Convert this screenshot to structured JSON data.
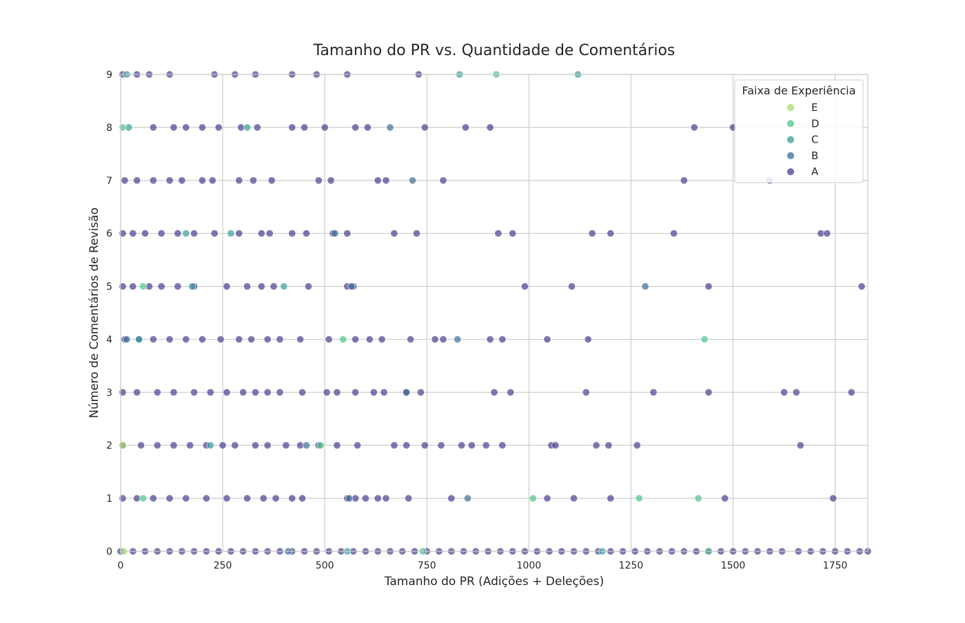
{
  "chart_data": {
    "type": "scatter",
    "title": "Tamanho do PR vs. Quantidade de Comentários",
    "xlabel": "Tamanho do PR (Adições + Deleções)",
    "ylabel": "Número de Comentários de Revisão",
    "xlim": [
      0,
      1830
    ],
    "ylim": [
      0,
      9
    ],
    "xticks": [
      0,
      250,
      500,
      750,
      1000,
      1250,
      1500,
      1750
    ],
    "yticks": [
      0,
      1,
      2,
      3,
      4,
      5,
      6,
      7,
      8,
      9
    ],
    "grid": true,
    "legend": {
      "title": "Faixa de Experiência",
      "placement": "top-right",
      "entries": [
        {
          "label": "E",
          "color": "#a8db6e"
        },
        {
          "label": "D",
          "color": "#4fc58a"
        },
        {
          "label": "C",
          "color": "#3a9e9a"
        },
        {
          "label": "B",
          "color": "#3e6f96"
        },
        {
          "label": "A",
          "color": "#4a3f8f"
        }
      ]
    },
    "series": [
      {
        "name": "A",
        "color": "#4a3f8f",
        "points": [
          [
            5,
            9
          ],
          [
            40,
            9
          ],
          [
            70,
            9
          ],
          [
            120,
            9
          ],
          [
            230,
            9
          ],
          [
            280,
            9
          ],
          [
            330,
            9
          ],
          [
            420,
            9
          ],
          [
            480,
            9
          ],
          [
            555,
            9
          ],
          [
            730,
            9
          ],
          [
            80,
            8
          ],
          [
            130,
            8
          ],
          [
            160,
            8
          ],
          [
            200,
            8
          ],
          [
            240,
            8
          ],
          [
            295,
            8
          ],
          [
            335,
            8
          ],
          [
            420,
            8
          ],
          [
            450,
            8
          ],
          [
            500,
            8
          ],
          [
            575,
            8
          ],
          [
            605,
            8
          ],
          [
            745,
            8
          ],
          [
            845,
            8
          ],
          [
            905,
            8
          ],
          [
            1405,
            8
          ],
          [
            1500,
            8
          ],
          [
            10,
            7
          ],
          [
            40,
            7
          ],
          [
            80,
            7
          ],
          [
            120,
            7
          ],
          [
            150,
            7
          ],
          [
            200,
            7
          ],
          [
            225,
            7
          ],
          [
            290,
            7
          ],
          [
            325,
            7
          ],
          [
            370,
            7
          ],
          [
            485,
            7
          ],
          [
            515,
            7
          ],
          [
            630,
            7
          ],
          [
            650,
            7
          ],
          [
            790,
            7
          ],
          [
            1380,
            7
          ],
          [
            1590,
            7
          ],
          [
            5,
            6
          ],
          [
            30,
            6
          ],
          [
            60,
            6
          ],
          [
            100,
            6
          ],
          [
            140,
            6
          ],
          [
            180,
            6
          ],
          [
            230,
            6
          ],
          [
            290,
            6
          ],
          [
            345,
            6
          ],
          [
            365,
            6
          ],
          [
            420,
            6
          ],
          [
            455,
            6
          ],
          [
            520,
            6
          ],
          [
            555,
            6
          ],
          [
            670,
            6
          ],
          [
            725,
            6
          ],
          [
            925,
            6
          ],
          [
            960,
            6
          ],
          [
            1155,
            6
          ],
          [
            1200,
            6
          ],
          [
            1355,
            6
          ],
          [
            1715,
            6
          ],
          [
            1730,
            6
          ],
          [
            5,
            5
          ],
          [
            30,
            5
          ],
          [
            70,
            5
          ],
          [
            100,
            5
          ],
          [
            140,
            5
          ],
          [
            180,
            5
          ],
          [
            260,
            5
          ],
          [
            310,
            5
          ],
          [
            345,
            5
          ],
          [
            375,
            5
          ],
          [
            460,
            5
          ],
          [
            555,
            5
          ],
          [
            570,
            5
          ],
          [
            990,
            5
          ],
          [
            1105,
            5
          ],
          [
            1440,
            5
          ],
          [
            1815,
            5
          ],
          [
            10,
            4
          ],
          [
            45,
            4
          ],
          [
            80,
            4
          ],
          [
            120,
            4
          ],
          [
            160,
            4
          ],
          [
            200,
            4
          ],
          [
            245,
            4
          ],
          [
            290,
            4
          ],
          [
            320,
            4
          ],
          [
            360,
            4
          ],
          [
            390,
            4
          ],
          [
            440,
            4
          ],
          [
            510,
            4
          ],
          [
            575,
            4
          ],
          [
            610,
            4
          ],
          [
            640,
            4
          ],
          [
            710,
            4
          ],
          [
            770,
            4
          ],
          [
            790,
            4
          ],
          [
            905,
            4
          ],
          [
            935,
            4
          ],
          [
            1045,
            4
          ],
          [
            1145,
            4
          ],
          [
            5,
            3
          ],
          [
            40,
            3
          ],
          [
            90,
            3
          ],
          [
            130,
            3
          ],
          [
            180,
            3
          ],
          [
            220,
            3
          ],
          [
            260,
            3
          ],
          [
            300,
            3
          ],
          [
            330,
            3
          ],
          [
            360,
            3
          ],
          [
            390,
            3
          ],
          [
            445,
            3
          ],
          [
            505,
            3
          ],
          [
            530,
            3
          ],
          [
            575,
            3
          ],
          [
            620,
            3
          ],
          [
            645,
            3
          ],
          [
            700,
            3
          ],
          [
            735,
            3
          ],
          [
            915,
            3
          ],
          [
            955,
            3
          ],
          [
            1140,
            3
          ],
          [
            1305,
            3
          ],
          [
            1440,
            3
          ],
          [
            1625,
            3
          ],
          [
            1655,
            3
          ],
          [
            1790,
            3
          ],
          [
            5,
            2
          ],
          [
            50,
            2
          ],
          [
            90,
            2
          ],
          [
            130,
            2
          ],
          [
            170,
            2
          ],
          [
            210,
            2
          ],
          [
            250,
            2
          ],
          [
            280,
            2
          ],
          [
            330,
            2
          ],
          [
            360,
            2
          ],
          [
            405,
            2
          ],
          [
            440,
            2
          ],
          [
            485,
            2
          ],
          [
            530,
            2
          ],
          [
            580,
            2
          ],
          [
            670,
            2
          ],
          [
            700,
            2
          ],
          [
            745,
            2
          ],
          [
            785,
            2
          ],
          [
            835,
            2
          ],
          [
            860,
            2
          ],
          [
            895,
            2
          ],
          [
            935,
            2
          ],
          [
            1055,
            2
          ],
          [
            1065,
            2
          ],
          [
            1165,
            2
          ],
          [
            1195,
            2
          ],
          [
            1265,
            2
          ],
          [
            1665,
            2
          ],
          [
            5,
            1
          ],
          [
            40,
            1
          ],
          [
            80,
            1
          ],
          [
            120,
            1
          ],
          [
            160,
            1
          ],
          [
            210,
            1
          ],
          [
            260,
            1
          ],
          [
            310,
            1
          ],
          [
            350,
            1
          ],
          [
            380,
            1
          ],
          [
            420,
            1
          ],
          [
            445,
            1
          ],
          [
            555,
            1
          ],
          [
            575,
            1
          ],
          [
            600,
            1
          ],
          [
            630,
            1
          ],
          [
            650,
            1
          ],
          [
            705,
            1
          ],
          [
            810,
            1
          ],
          [
            1045,
            1
          ],
          [
            1110,
            1
          ],
          [
            1200,
            1
          ],
          [
            1480,
            1
          ],
          [
            1745,
            1
          ],
          [
            0,
            0
          ],
          [
            30,
            0
          ],
          [
            60,
            0
          ],
          [
            90,
            0
          ],
          [
            120,
            0
          ],
          [
            150,
            0
          ],
          [
            180,
            0
          ],
          [
            210,
            0
          ],
          [
            240,
            0
          ],
          [
            270,
            0
          ],
          [
            300,
            0
          ],
          [
            330,
            0
          ],
          [
            360,
            0
          ],
          [
            390,
            0
          ],
          [
            420,
            0
          ],
          [
            450,
            0
          ],
          [
            480,
            0
          ],
          [
            510,
            0
          ],
          [
            540,
            0
          ],
          [
            570,
            0
          ],
          [
            600,
            0
          ],
          [
            630,
            0
          ],
          [
            660,
            0
          ],
          [
            690,
            0
          ],
          [
            720,
            0
          ],
          [
            750,
            0
          ],
          [
            780,
            0
          ],
          [
            810,
            0
          ],
          [
            840,
            0
          ],
          [
            870,
            0
          ],
          [
            900,
            0
          ],
          [
            930,
            0
          ],
          [
            960,
            0
          ],
          [
            990,
            0
          ],
          [
            1020,
            0
          ],
          [
            1050,
            0
          ],
          [
            1080,
            0
          ],
          [
            1110,
            0
          ],
          [
            1140,
            0
          ],
          [
            1170,
            0
          ],
          [
            1200,
            0
          ],
          [
            1230,
            0
          ],
          [
            1260,
            0
          ],
          [
            1290,
            0
          ],
          [
            1320,
            0
          ],
          [
            1350,
            0
          ],
          [
            1380,
            0
          ],
          [
            1410,
            0
          ],
          [
            1440,
            0
          ],
          [
            1470,
            0
          ],
          [
            1500,
            0
          ],
          [
            1530,
            0
          ],
          [
            1560,
            0
          ],
          [
            1590,
            0
          ],
          [
            1620,
            0
          ],
          [
            1660,
            0
          ],
          [
            1690,
            0
          ],
          [
            1720,
            0
          ],
          [
            1750,
            0
          ],
          [
            1780,
            0
          ],
          [
            1810,
            0
          ],
          [
            1830,
            0
          ]
        ]
      },
      {
        "name": "B",
        "color": "#3e6f96",
        "points": [
          [
            660,
            8
          ],
          [
            715,
            7
          ],
          [
            525,
            6
          ],
          [
            565,
            5
          ],
          [
            1285,
            5
          ],
          [
            15,
            4
          ],
          [
            825,
            4
          ],
          [
            700,
            3
          ],
          [
            455,
            2
          ],
          [
            560,
            1
          ],
          [
            850,
            1
          ],
          [
            410,
            0
          ]
        ]
      },
      {
        "name": "C",
        "color": "#3a9e9a",
        "points": [
          [
            15,
            9
          ],
          [
            830,
            9
          ],
          [
            1120,
            9
          ],
          [
            20,
            8
          ],
          [
            310,
            8
          ],
          [
            160,
            6
          ],
          [
            270,
            6
          ],
          [
            175,
            5
          ],
          [
            400,
            5
          ],
          [
            45,
            4
          ],
          [
            220,
            2
          ],
          [
            555,
            0
          ],
          [
            1180,
            0
          ]
        ]
      },
      {
        "name": "D",
        "color": "#4fc58a",
        "points": [
          [
            920,
            9
          ],
          [
            5,
            8
          ],
          [
            55,
            5
          ],
          [
            545,
            4
          ],
          [
            1430,
            4
          ],
          [
            490,
            2
          ],
          [
            1010,
            1
          ],
          [
            1270,
            1
          ],
          [
            1415,
            1
          ],
          [
            55,
            1
          ],
          [
            740,
            0
          ],
          [
            1440,
            0
          ]
        ]
      },
      {
        "name": "E",
        "color": "#a8db6e",
        "points": [
          [
            5,
            2
          ],
          [
            8,
            0
          ]
        ]
      }
    ]
  }
}
